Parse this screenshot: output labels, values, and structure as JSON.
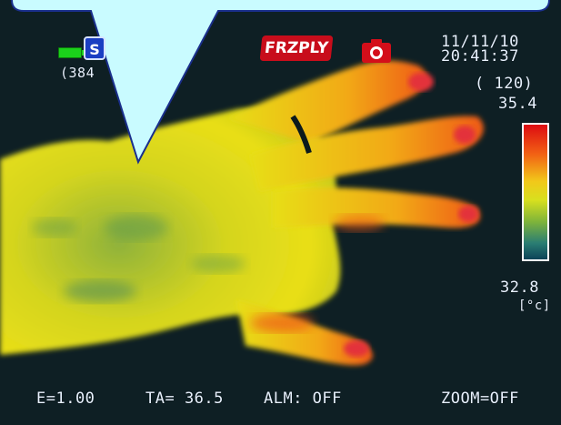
{
  "status": {
    "date": "11/11/10",
    "time": "20:41:37",
    "counter": "( 120)",
    "dim_label": "(384",
    "mode_label": "S",
    "freeze_label": "FRZPLY"
  },
  "scale": {
    "max": "35.4",
    "min": "32.8",
    "unit": "[°c]"
  },
  "bottom": {
    "emissivity": "E=1.00",
    "ambient": "TA= 36.5",
    "alarm": "ALM: OFF",
    "zoom": "ZOOM=OFF"
  },
  "icons": {
    "battery": "battery-icon",
    "camera": "camera-icon",
    "freeze": "freeze-playback-icon",
    "mode": "mode-icon"
  },
  "colors": {
    "background": "#0e1f24",
    "palette_hot": "#dd0b12",
    "palette_mid": "#f2c81a",
    "palette_cold": "#0c4358",
    "callout_fill": "#c9fbff",
    "hud_text": "#e8f2ff"
  }
}
